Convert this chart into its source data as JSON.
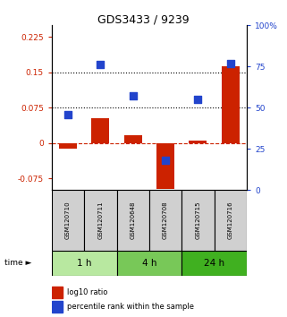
{
  "title": "GDS3433 / 9239",
  "samples": [
    "GSM120710",
    "GSM120711",
    "GSM120648",
    "GSM120708",
    "GSM120715",
    "GSM120716"
  ],
  "time_groups": [
    {
      "label": "1 h",
      "indices": [
        0,
        1
      ],
      "color": "#b8e8a0"
    },
    {
      "label": "4 h",
      "indices": [
        2,
        3
      ],
      "color": "#78c858"
    },
    {
      "label": "24 h",
      "indices": [
        4,
        5
      ],
      "color": "#40b020"
    }
  ],
  "log10_ratio": [
    -0.012,
    0.052,
    0.016,
    -0.097,
    0.005,
    0.163
  ],
  "percentile_rank": [
    46,
    76,
    57,
    18,
    55,
    77
  ],
  "ylim_left": [
    -0.1,
    0.25
  ],
  "ylim_right": [
    0,
    100
  ],
  "yticks_left": [
    -0.075,
    0,
    0.075,
    0.15,
    0.225
  ],
  "yticks_right": [
    0,
    25,
    50,
    75,
    100
  ],
  "hlines": [
    0.075,
    0.15
  ],
  "bar_color": "#cc2200",
  "dot_color": "#2244cc",
  "bar_width": 0.55,
  "dot_size": 30,
  "background_color": "#ffffff",
  "legend_items": [
    "log10 ratio",
    "percentile rank within the sample"
  ],
  "legend_colors": [
    "#cc2200",
    "#2244cc"
  ]
}
